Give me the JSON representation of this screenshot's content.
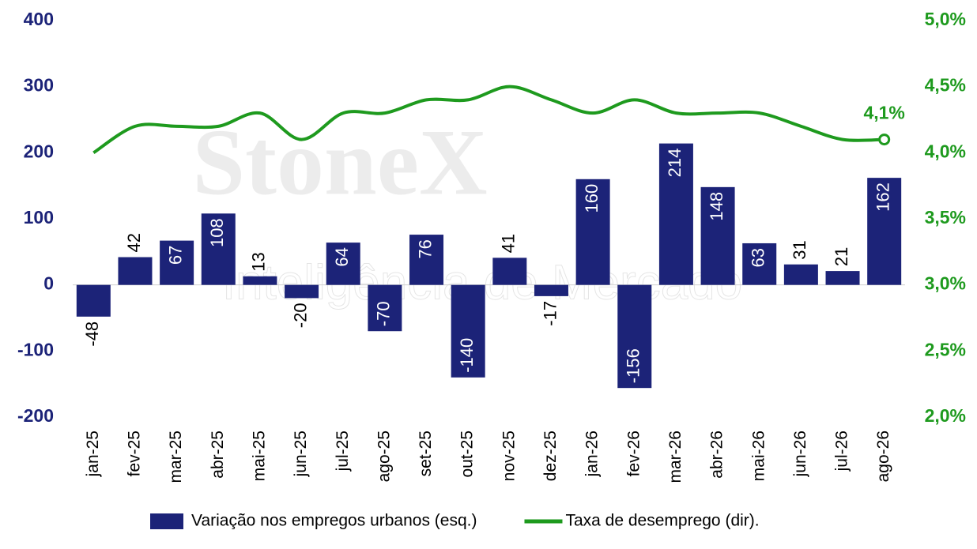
{
  "chart_data": {
    "type": "bar-line",
    "watermark": {
      "brand": "StoneX",
      "subtitle": "Inteligência de Mercado"
    },
    "categories": [
      "jan-25",
      "fev-25",
      "mar-25",
      "abr-25",
      "mai-25",
      "jun-25",
      "jul-25",
      "ago-25",
      "set-25",
      "out-25",
      "nov-25",
      "dez-25",
      "jan-26",
      "fev-26",
      "mar-26",
      "abr-26",
      "mai-26",
      "jun-26",
      "jul-26",
      "ago-26"
    ],
    "series": [
      {
        "name": "Variação nos empregos urbanos (esq.)",
        "type": "bar",
        "color": "#1c2378",
        "values": [
          -48,
          42,
          67,
          108,
          13,
          -20,
          64,
          -70,
          76,
          -140,
          41,
          -17,
          160,
          -156,
          214,
          148,
          63,
          31,
          21,
          162
        ]
      },
      {
        "name": "Taxa de desemprego (dir).",
        "type": "line",
        "axis": "y2",
        "color": "#1e9a1e",
        "values": [
          4.0,
          4.2,
          4.2,
          4.2,
          4.3,
          4.1,
          4.3,
          4.3,
          4.4,
          4.4,
          4.5,
          4.4,
          4.3,
          4.4,
          4.3,
          4.3,
          4.3,
          4.2,
          4.1,
          4.1
        ],
        "value_labels": [
          null,
          null,
          null,
          null,
          null,
          null,
          null,
          null,
          null,
          null,
          null,
          null,
          null,
          null,
          null,
          null,
          null,
          null,
          null,
          "4,1%"
        ]
      }
    ],
    "ylim": [
      -200,
      400
    ],
    "yticks": [
      -200,
      -100,
      0,
      100,
      200,
      300,
      400
    ],
    "y2lim": [
      2.0,
      5.0
    ],
    "y2ticks": [
      {
        "value": 2.0,
        "label": "2,0%"
      },
      {
        "value": 2.5,
        "label": "2,5%"
      },
      {
        "value": 3.0,
        "label": "3,0%"
      },
      {
        "value": 3.5,
        "label": "3,5%"
      },
      {
        "value": 4.0,
        "label": "4,0%"
      },
      {
        "value": 4.5,
        "label": "4,5%"
      },
      {
        "value": 5.0,
        "label": "5,0%"
      }
    ],
    "left_axis_color": "#1c2378",
    "right_axis_color": "#1e9a1e",
    "legend": "bottom"
  }
}
